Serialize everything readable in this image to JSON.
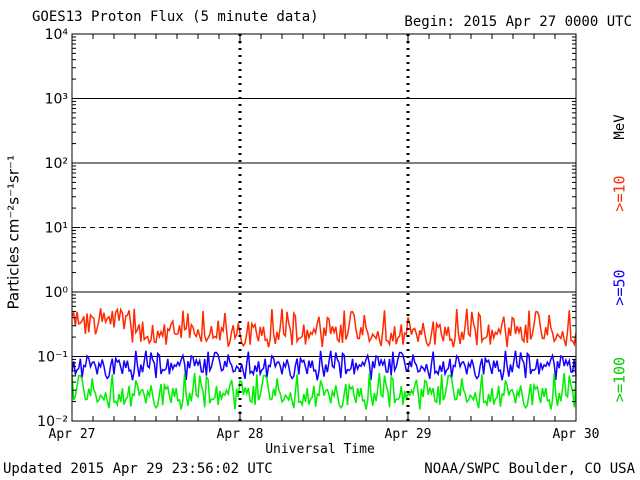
{
  "header": {
    "title": "GOES13 Proton Flux (5 minute data)",
    "begin": "Begin: 2015 Apr 27 0000 UTC"
  },
  "footer": {
    "updated": "Updated 2015 Apr 29 23:56:02 UTC",
    "credit": "NOAA/SWPC Boulder, CO USA"
  },
  "chart_data": {
    "type": "line",
    "title": "GOES13 Proton Flux (5 minute data)",
    "xlabel": "Universal Time",
    "ylabel": "Particles cm⁻²s⁻¹sr⁻¹",
    "yscale": "log",
    "ylim": [
      0.01,
      10000
    ],
    "y_ticks": [
      "10⁻²",
      "10⁻¹",
      "10⁰",
      "10¹",
      "10²",
      "10³",
      "10⁴"
    ],
    "x_ticks": [
      "Apr 27",
      "Apr 28",
      "Apr 29",
      "Apr 30"
    ],
    "xlim": [
      "2015-04-27",
      "2015-04-30"
    ],
    "gridlines": {
      "solid": [
        0.1,
        1,
        100,
        1000
      ],
      "dashed": [
        10
      ]
    },
    "units_label": "MeV",
    "legend_position": "right",
    "series": [
      {
        "name": ">=10",
        "color": "#ff2a00",
        "min": 0.13,
        "max": 0.6,
        "typical": 0.22
      },
      {
        "name": ">=50",
        "color": "#1400ff",
        "min": 0.04,
        "max": 0.13,
        "typical": 0.07
      },
      {
        "name": ">=100",
        "color": "#00ee00",
        "min": 0.014,
        "max": 0.06,
        "typical": 0.025
      }
    ]
  }
}
